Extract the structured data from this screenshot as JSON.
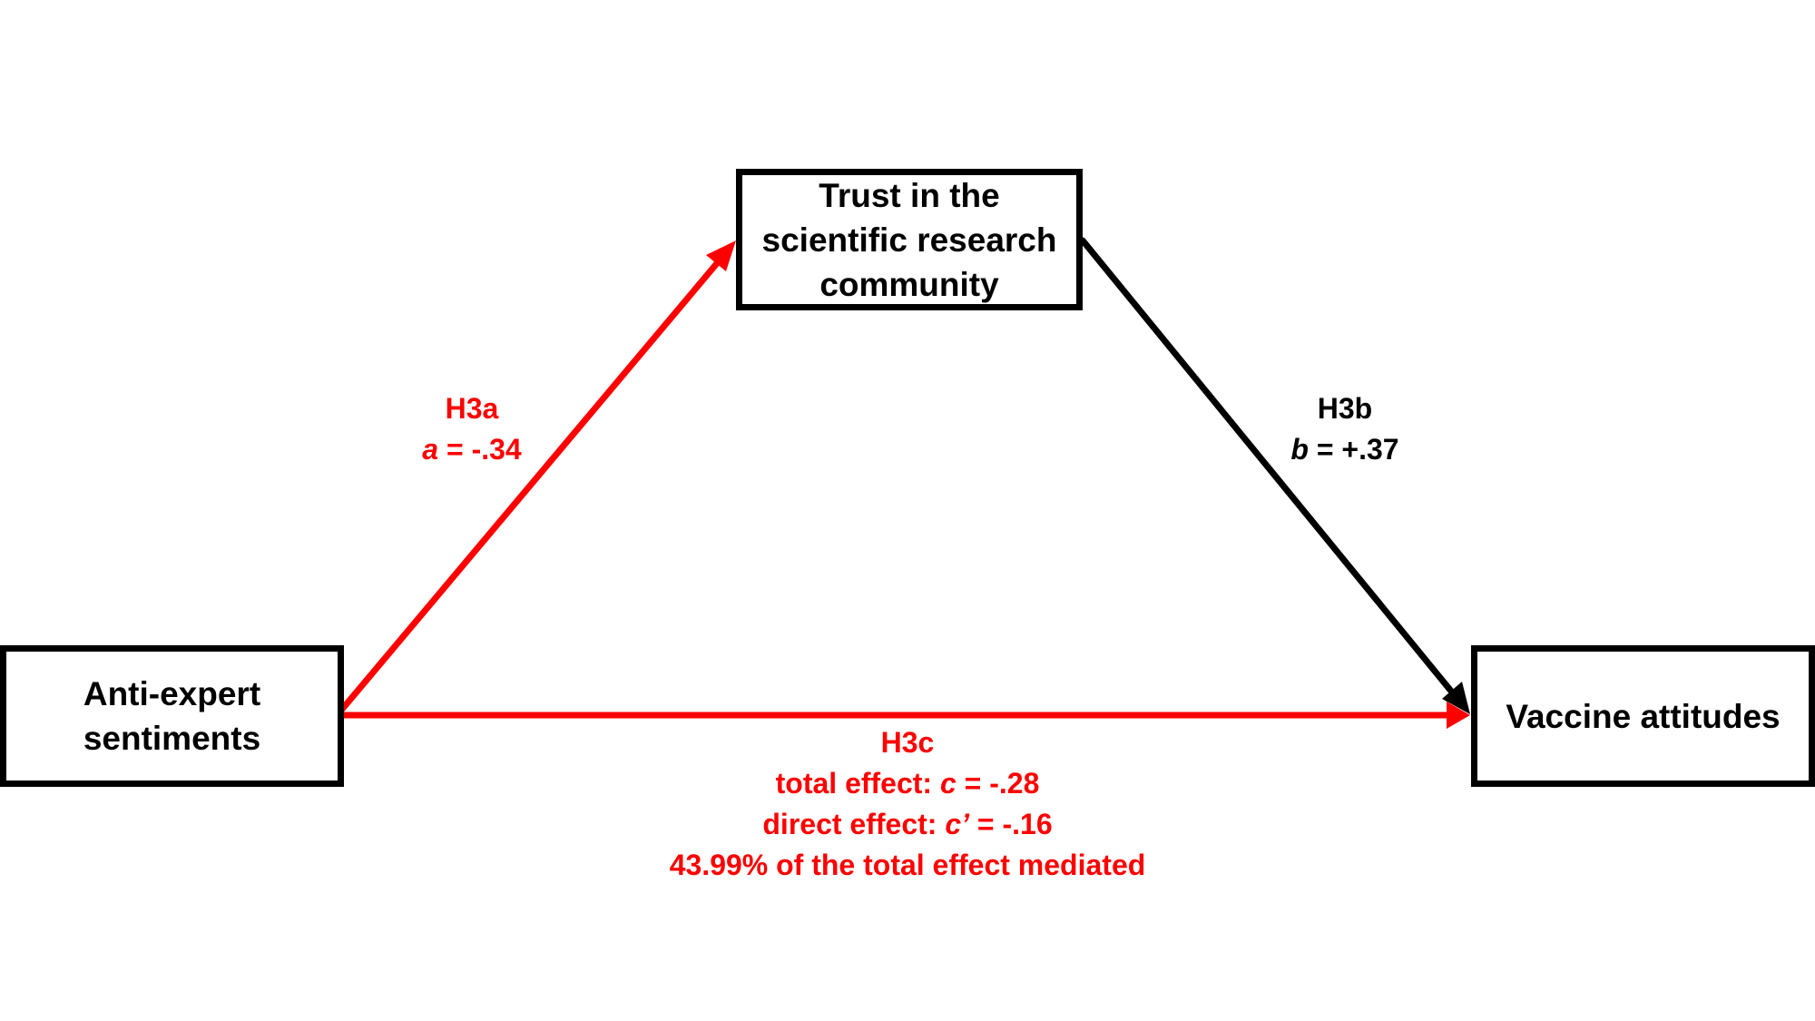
{
  "colors": {
    "highlight": "#ff0000",
    "default": "#000000"
  },
  "nodes": {
    "mediator": {
      "line1": "Trust in the",
      "line2": "scientific research",
      "line3": "community"
    },
    "predictor": {
      "line1": "Anti-expert",
      "line2": "sentiments"
    },
    "outcome": {
      "line1": "Vaccine attitudes"
    }
  },
  "paths": {
    "h3a": {
      "name": "H3a",
      "coef_symbol": "a",
      "coef_rest": " = -.34",
      "color": "#ff0000"
    },
    "h3b": {
      "name": "H3b",
      "coef_symbol": "b",
      "coef_rest": " = +.37",
      "color": "#000000"
    },
    "h3c": {
      "name": "H3c",
      "total_prefix": "total effect: ",
      "total_symbol": "c",
      "total_rest": " = -.28",
      "direct_prefix": "direct effect: ",
      "direct_symbol": "c’",
      "direct_rest": " = -.16",
      "mediated": "43.99% of the total effect mediated",
      "color": "#ff0000"
    }
  }
}
